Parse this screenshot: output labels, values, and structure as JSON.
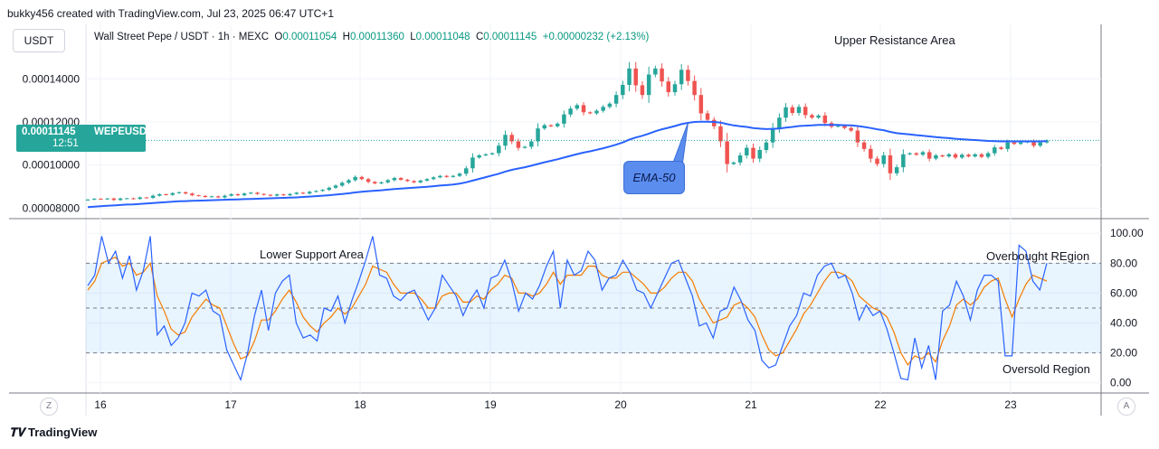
{
  "header": {
    "created_by": "bukky456 created with TradingView.com, Jul 23, 2025 06:47 UTC+1",
    "currency_button": "USDT",
    "legend_title": "Wall Street Pepe / USDT · 1h · MEXC",
    "ohlc": {
      "o_label": "O",
      "o": "0.00011054",
      "h_label": "H",
      "h": "0.00011360",
      "l_label": "L",
      "l": "0.00011048",
      "c_label": "C",
      "c": "0.00011145",
      "change": "+0.00000232 (+2.13%)"
    }
  },
  "price_tag": {
    "price": "0.00011145",
    "symbol": "WEPEUSDT",
    "countdown": "12:51"
  },
  "footer": {
    "brand": "TradingView",
    "left_button": "Z",
    "right_button": "A"
  },
  "colors": {
    "up": "#26a69a",
    "down": "#ef5350",
    "ema": "#2962ff",
    "rsi": "#2962ff",
    "rsi_ma": "#f57c00",
    "band": "#2196f3"
  },
  "chart_data": [
    {
      "type": "candlestick",
      "title": "Wall Street Pepe / USDT · 1h · MEXC",
      "y_ticks": [
        8e-05,
        0.0001,
        0.00012,
        0.00014
      ],
      "y_tick_labels": [
        "0.00008000",
        "0.00010000",
        "0.00012000",
        "0.00014000"
      ],
      "ylim": [
        7.6e-05,
        0.000164
      ],
      "x_ticks": [
        "16",
        "17",
        "18",
        "19",
        "20",
        "21",
        "22",
        "23"
      ],
      "annotations": {
        "upper_resistance": "Upper Resistance Area",
        "ema_label": "EMA-50"
      },
      "current_price_line": 0.00011145,
      "close": [
        8.4e-05,
        8.44e-05,
        8.42e-05,
        8.45e-05,
        8.38e-05,
        8.45e-05,
        8.46e-05,
        8.43e-05,
        8.5e-05,
        8.48e-05,
        8.58e-05,
        8.65e-05,
        8.62e-05,
        8.7e-05,
        8.74e-05,
        8.68e-05,
        8.6e-05,
        8.57e-05,
        8.52e-05,
        8.55e-05,
        8.5e-05,
        8.58e-05,
        8.65e-05,
        8.6e-05,
        8.68e-05,
        8.72e-05,
        8.66e-05,
        8.62e-05,
        8.58e-05,
        8.64e-05,
        8.6e-05,
        8.66e-05,
        8.72e-05,
        8.68e-05,
        8.76e-05,
        8.8e-05,
        8.85e-05,
        8.95e-05,
        9.05e-05,
        9.18e-05,
        9.3e-05,
        9.45e-05,
        9.35e-05,
        9.22e-05,
        9.15e-05,
        9.2e-05,
        9.3e-05,
        9.4e-05,
        9.32e-05,
        9.26e-05,
        9.2e-05,
        9.28e-05,
        9.35e-05,
        9.43e-05,
        9.5e-05,
        9.45e-05,
        9.5e-05,
        9.6e-05,
        9.85e-05,
        0.0001035,
        0.0001045,
        0.000105,
        0.0001055,
        0.000109,
        0.000114,
        0.000111,
        0.000108,
        0.0001085,
        0.000111,
        0.000117,
        0.0001185,
        0.000118,
        0.0001192,
        0.0001235,
        0.0001262,
        0.0001278,
        0.0001245,
        0.000124,
        0.0001252,
        0.000127,
        0.0001285,
        0.0001325,
        0.0001372,
        0.0001448,
        0.000137,
        0.0001325,
        0.000142,
        0.0001448,
        0.0001388,
        0.0001338,
        0.0001375,
        0.0001442,
        0.000139,
        0.0001325,
        0.000124,
        0.000121,
        0.000118,
        0.000111,
        0.0001005,
        0.0001012,
        0.0001045,
        0.000108,
        0.000103,
        0.000107,
        0.0001105,
        0.000117,
        0.000122,
        0.0001268,
        0.0001242,
        0.000127,
        0.0001232,
        0.000122,
        0.000123,
        0.0001195,
        0.0001178,
        0.0001182,
        0.0001172,
        0.000116,
        0.0001105,
        0.0001075,
        0.000103,
        0.0001005,
        0.0001045,
        9.62e-05,
        9.9e-05,
        0.000105,
        0.0001055,
        0.0001048,
        0.000106,
        0.000103,
        0.0001045,
        0.000104,
        0.000105,
        0.0001035,
        0.0001048,
        0.000104,
        0.000105,
        0.0001038,
        0.0001055,
        0.0001082,
        0.0001075,
        0.0001105,
        0.0001098,
        0.0001105,
        0.000111,
        0.000109,
        0.0001105,
        0.0001114
      ],
      "ema_50": [
        8.05e-05,
        8.07e-05,
        8.09e-05,
        8.11e-05,
        8.13e-05,
        8.15e-05,
        8.17e-05,
        8.18e-05,
        8.2e-05,
        8.22e-05,
        8.24e-05,
        8.26e-05,
        8.28e-05,
        8.3e-05,
        8.32e-05,
        8.33e-05,
        8.34e-05,
        8.35e-05,
        8.36e-05,
        8.37e-05,
        8.38e-05,
        8.39e-05,
        8.4e-05,
        8.41e-05,
        8.42e-05,
        8.43e-05,
        8.44e-05,
        8.45e-05,
        8.46e-05,
        8.47e-05,
        8.48e-05,
        8.49e-05,
        8.5e-05,
        8.52e-05,
        8.54e-05,
        8.56e-05,
        8.58e-05,
        8.6e-05,
        8.63e-05,
        8.66e-05,
        8.69e-05,
        8.73e-05,
        8.76e-05,
        8.79e-05,
        8.81e-05,
        8.83e-05,
        8.86e-05,
        8.89e-05,
        8.91e-05,
        8.93e-05,
        8.95e-05,
        8.97e-05,
        8.99e-05,
        9.02e-05,
        9.05e-05,
        9.07e-05,
        9.1e-05,
        9.14e-05,
        9.2e-05,
        9.28e-05,
        9.36e-05,
        9.44e-05,
        9.52e-05,
        9.6e-05,
        9.7e-05,
        9.78e-05,
        9.84e-05,
        9.9e-05,
        9.97e-05,
        0.0001005,
        0.0001013,
        0.000102,
        0.0001027,
        0.0001035,
        0.0001043,
        0.0001051,
        0.0001058,
        0.0001064,
        0.0001071,
        0.0001078,
        0.0001086,
        0.0001095,
        0.0001105,
        0.0001118,
        0.0001128,
        0.0001136,
        0.0001146,
        0.0001157,
        0.0001166,
        0.0001173,
        0.0001181,
        0.000119,
        0.0001196,
        0.00012,
        0.0001201,
        0.0001201,
        0.00012,
        0.0001197,
        0.000119,
        0.0001184,
        0.000118,
        0.0001177,
        0.0001172,
        0.0001169,
        0.0001167,
        0.0001168,
        0.000117,
        0.0001174,
        0.0001177,
        0.0001181,
        0.0001183,
        0.0001184,
        0.0001186,
        0.0001186,
        0.0001186,
        0.0001186,
        0.0001185,
        0.0001184,
        0.0001181,
        0.0001177,
        0.0001172,
        0.0001166,
        0.0001162,
        0.0001154,
        0.0001148,
        0.0001145,
        0.0001142,
        0.0001139,
        0.0001136,
        0.0001133,
        0.000113,
        0.0001127,
        0.0001125,
        0.0001122,
        0.000112,
        0.0001118,
        0.0001116,
        0.0001114,
        0.0001112,
        0.0001111,
        0.000111,
        0.000111,
        0.000111,
        0.000111,
        0.000111,
        0.000111,
        0.000111,
        0.0001111
      ]
    },
    {
      "type": "line",
      "title": "RSI",
      "y_ticks": [
        0,
        20,
        40,
        60,
        80,
        100
      ],
      "y_tick_labels": [
        "0.00",
        "20.00",
        "40.00",
        "60.00",
        "80.00",
        "100.00"
      ],
      "ylim": [
        -5,
        108
      ],
      "band": [
        20,
        80
      ],
      "dashed_levels": [
        20,
        50,
        80
      ],
      "annotations": {
        "lower_support": "Lower Support Area",
        "overbought": "Overbought REgion",
        "oversold": "Oversold Region"
      },
      "series": [
        {
          "values": [
            65,
            72,
            98,
            80,
            88,
            70,
            85,
            62,
            75,
            98,
            32,
            38,
            25,
            30,
            40,
            60,
            58,
            62,
            48,
            45,
            22,
            12,
            2,
            20,
            45,
            62,
            35,
            60,
            68,
            72,
            40,
            30,
            32,
            28,
            50,
            48,
            58,
            40,
            55,
            68,
            82,
            98,
            72,
            70,
            58,
            55,
            60,
            62,
            52,
            42,
            50,
            72,
            65,
            58,
            45,
            55,
            62,
            50,
            70,
            72,
            82,
            68,
            48,
            60,
            56,
            65,
            78,
            88,
            50,
            82,
            72,
            75,
            88,
            82,
            62,
            70,
            72,
            82,
            74,
            62,
            60,
            50,
            60,
            70,
            80,
            82,
            70,
            58,
            38,
            40,
            30,
            48,
            50,
            64,
            55,
            42,
            35,
            15,
            10,
            12,
            25,
            38,
            45,
            60,
            58,
            72,
            78,
            80,
            70,
            72,
            60,
            42,
            52,
            45,
            48,
            36,
            20,
            3,
            2,
            30,
            10,
            25,
            2,
            48,
            52,
            68,
            58,
            42,
            62,
            72,
            72,
            68,
            18,
            18,
            92,
            88,
            68,
            62,
            80
          ]
        },
        {
          "values": [
            62,
            68,
            80,
            82,
            84,
            78,
            80,
            72,
            74,
            80,
            58,
            48,
            36,
            32,
            34,
            44,
            50,
            56,
            52,
            50,
            38,
            26,
            16,
            18,
            28,
            42,
            42,
            48,
            56,
            62,
            54,
            44,
            38,
            34,
            40,
            44,
            50,
            46,
            50,
            58,
            66,
            78,
            76,
            74,
            66,
            60,
            60,
            60,
            56,
            50,
            50,
            58,
            60,
            60,
            54,
            54,
            58,
            56,
            62,
            66,
            72,
            70,
            60,
            60,
            58,
            60,
            66,
            74,
            66,
            72,
            72,
            72,
            78,
            78,
            72,
            70,
            70,
            74,
            74,
            70,
            66,
            60,
            60,
            64,
            70,
            74,
            74,
            68,
            56,
            48,
            40,
            42,
            44,
            52,
            54,
            50,
            44,
            32,
            22,
            18,
            20,
            28,
            36,
            46,
            52,
            60,
            68,
            74,
            74,
            72,
            68,
            58,
            54,
            50,
            48,
            44,
            34,
            20,
            12,
            18,
            16,
            20,
            14,
            28,
            38,
            52,
            56,
            52,
            56,
            64,
            68,
            70,
            56,
            44,
            56,
            66,
            72,
            70,
            68
          ]
        }
      ]
    }
  ]
}
